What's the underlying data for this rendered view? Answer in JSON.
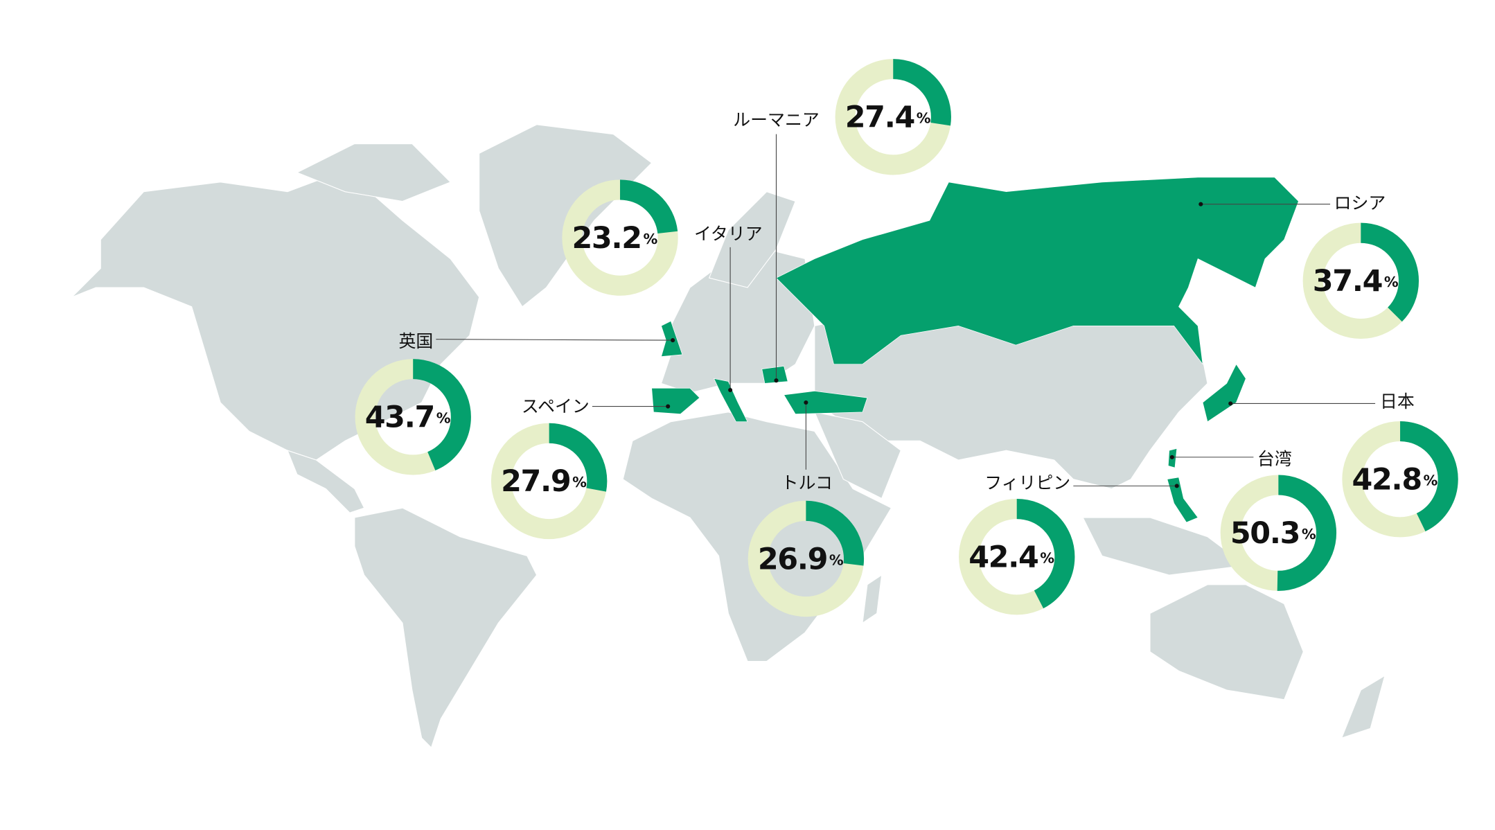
{
  "unit": "%",
  "items": [
    {
      "name": "ルーマニア",
      "value": 27.4
    },
    {
      "name": "イタリア",
      "value": 23.2
    },
    {
      "name": "ロシア",
      "value": 37.4
    },
    {
      "name": "英国",
      "value": 43.7
    },
    {
      "name": "スペイン",
      "value": 27.9
    },
    {
      "name": "トルコ",
      "value": 26.9
    },
    {
      "name": "フィリピン",
      "value": 42.4
    },
    {
      "name": "台湾",
      "value": 50.3
    },
    {
      "name": "日本",
      "value": 42.8
    }
  ]
}
